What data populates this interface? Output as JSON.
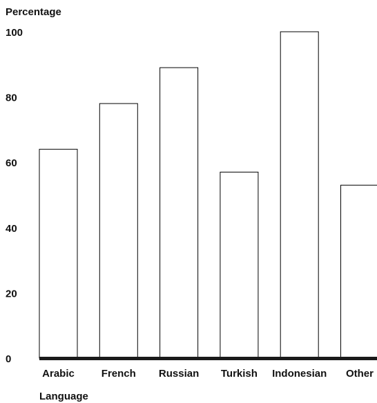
{
  "chart_data": {
    "type": "bar",
    "title": "",
    "ylabel": "Percentage",
    "xlabel": "Language",
    "categories": [
      "Arabic",
      "French",
      "Russian",
      "Turkish",
      "Indonesian",
      "Other"
    ],
    "values": [
      64,
      78,
      89,
      57,
      100,
      53
    ],
    "ylim": [
      0,
      100
    ],
    "yticks": [
      0,
      20,
      40,
      60,
      80,
      100
    ],
    "grid": false,
    "legend": "none",
    "colors": {
      "bar_fill": "#ffffff",
      "bar_stroke": "#000000",
      "axis": "#1a1a1a",
      "text": "#111111"
    }
  }
}
